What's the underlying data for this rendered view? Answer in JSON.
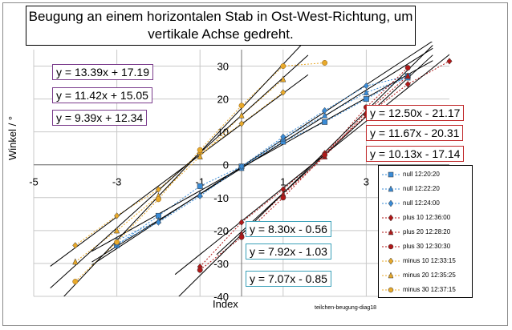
{
  "title": {
    "line1": "Beugung an einem horizontalen Stab in Ost-West-Richtung, um",
    "line2": "vertikale Achse gedreht."
  },
  "xlabel": "Index",
  "ylabel": "Winkel / °",
  "credit": "teilchen-beugung-diag18",
  "x_tick_labels": [
    "-5",
    "-3",
    "-1",
    "1",
    "3"
  ],
  "y_tick_labels": [
    "30",
    "20",
    "10",
    "0",
    "-10",
    "-20",
    "-30",
    "-40"
  ],
  "equations": {
    "minus": [
      "y = 13.39x + 17.19",
      "y = 11.42x + 15.05",
      "y = 9.39x + 12.34"
    ],
    "plus": [
      "y = 12.50x - 21.17",
      "y = 11.67x - 20.31",
      "y = 10.13x - 17.14"
    ],
    "null": [
      "y = 8.30x - 0.56",
      "y = 7.92x - 1.03",
      "y = 7.07x - 0.85"
    ]
  },
  "colors": {
    "null_series": "#3a8bd6",
    "plus_series": "#b01818",
    "minus_series": "#e8a92a",
    "minus_box": "#7a3c8c",
    "plus_box": "#c0282a",
    "null_box": "#3aa0b8"
  },
  "chart_data": {
    "type": "scatter",
    "xlabel": "Index",
    "ylabel": "Winkel / °",
    "xlim": [
      -5,
      5
    ],
    "ylim": [
      -40,
      35
    ],
    "x_ticks": [
      -5,
      -3,
      -1,
      1,
      3
    ],
    "y_ticks": [
      -40,
      -30,
      -20,
      -10,
      0,
      10,
      20,
      30
    ],
    "grid": true,
    "legend_position": "right",
    "series": [
      {
        "name": "null 12:20:20",
        "group": "null",
        "marker": "square",
        "color": "#3a8bd6",
        "x": [
          -3,
          -2,
          -1,
          0,
          1,
          2,
          3,
          4
        ],
        "y": [
          -24.5,
          -15.5,
          -6.5,
          -0.5,
          7.0,
          13.0,
          20.0,
          27.0
        ],
        "fit": [
          8.3,
          -0.56
        ]
      },
      {
        "name": "null 12:22:20",
        "group": "null",
        "marker": "triangle",
        "color": "#3a8bd6",
        "x": [
          -3,
          -2,
          -1,
          0,
          1,
          2,
          3,
          4
        ],
        "y": [
          -23.0,
          -17.0,
          -9.0,
          -1.0,
          8.0,
          15.0,
          22.0,
          26.5
        ],
        "fit": [
          7.92,
          -1.03
        ]
      },
      {
        "name": "null 12:24:00",
        "group": "null",
        "marker": "diamond",
        "color": "#3a8bd6",
        "x": [
          -3,
          -2,
          -1,
          0,
          1,
          2,
          3,
          4
        ],
        "y": [
          -24.0,
          -17.5,
          -9.5,
          -0.5,
          8.5,
          16.5,
          24.0,
          27.0
        ],
        "fit": [
          7.07,
          -0.85
        ]
      },
      {
        "name": "plus 10 12:36:00",
        "group": "plus",
        "marker": "diamond",
        "color": "#b01818",
        "x": [
          -1,
          0,
          1,
          2,
          3,
          4,
          5
        ],
        "y": [
          -31.0,
          -17.5,
          -7.5,
          3.5,
          15.0,
          24.5,
          31.5
        ],
        "fit": [
          10.13,
          -17.14
        ]
      },
      {
        "name": "plus 20 12:28:20",
        "group": "plus",
        "marker": "triangle",
        "color": "#b01818",
        "x": [
          0,
          1,
          2,
          3,
          4
        ],
        "y": [
          -21.0,
          -9.0,
          2.5,
          16.0,
          27.0
        ],
        "fit": [
          11.67,
          -20.31
        ]
      },
      {
        "name": "plus 30 12:30:30",
        "group": "plus",
        "marker": "circle",
        "color": "#b01818",
        "x": [
          -1,
          0,
          1,
          2,
          3,
          4
        ],
        "y": [
          -32.0,
          -22.0,
          -10.0,
          3.0,
          17.5,
          29.5
        ],
        "fit": [
          12.5,
          -21.17
        ]
      },
      {
        "name": "minus 10 12:33:15",
        "group": "minus",
        "marker": "diamond",
        "color": "#e8a92a",
        "x": [
          -4,
          -3,
          -2,
          -1,
          0,
          1
        ],
        "y": [
          -24.5,
          -15.5,
          -7.5,
          3.5,
          12.5,
          22.0
        ],
        "fit": [
          9.39,
          12.34
        ]
      },
      {
        "name": "minus 20 12:35:25",
        "group": "minus",
        "marker": "triangle",
        "color": "#e8a92a",
        "x": [
          -4,
          -3,
          -2,
          -1,
          0,
          1
        ],
        "y": [
          -29.5,
          -20.0,
          -9.5,
          2.5,
          15.0,
          26.0
        ],
        "fit": [
          11.42,
          15.05
        ]
      },
      {
        "name": "minus 30 12:37:15",
        "group": "minus",
        "marker": "circle",
        "color": "#e8a92a",
        "x": [
          -4,
          -3,
          -2,
          -1,
          0,
          1,
          2
        ],
        "y": [
          -35.5,
          -23.5,
          -10.5,
          4.5,
          18.0,
          30.0,
          31.0
        ],
        "fit": [
          13.39,
          17.19
        ]
      }
    ]
  }
}
